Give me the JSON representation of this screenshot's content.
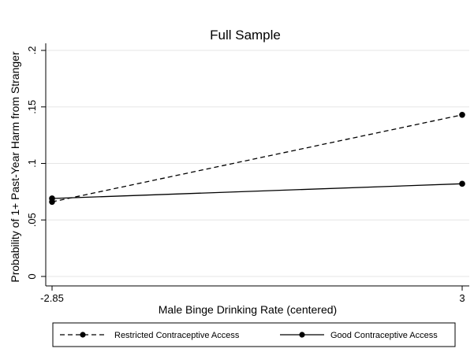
{
  "chart_data": {
    "type": "line",
    "title": "Full Sample",
    "xlabel": "Male Binge Drinking Rate (centered)",
    "ylabel": "Probability of 1+ Past-Year Harm from Stranger",
    "x": [
      -2.85,
      3
    ],
    "x_tick_labels": [
      "-2.85",
      "3"
    ],
    "xlim": [
      -2.85,
      3
    ],
    "ylim": [
      0,
      0.2
    ],
    "y_ticks": [
      0,
      0.05,
      0.1,
      0.15,
      0.2
    ],
    "y_tick_labels": [
      "0",
      ".05",
      ".1",
      ".15",
      ".2"
    ],
    "grid": true,
    "legend_position": "bottom",
    "series": [
      {
        "name": "Restricted Contraceptive Access",
        "values": [
          0.066,
          0.143
        ],
        "line_style": "dashed",
        "marker": "circle",
        "color": "#000000"
      },
      {
        "name": "Good Contraceptive Access",
        "values": [
          0.069,
          0.082
        ],
        "line_style": "solid",
        "marker": "circle",
        "color": "#000000"
      }
    ]
  }
}
